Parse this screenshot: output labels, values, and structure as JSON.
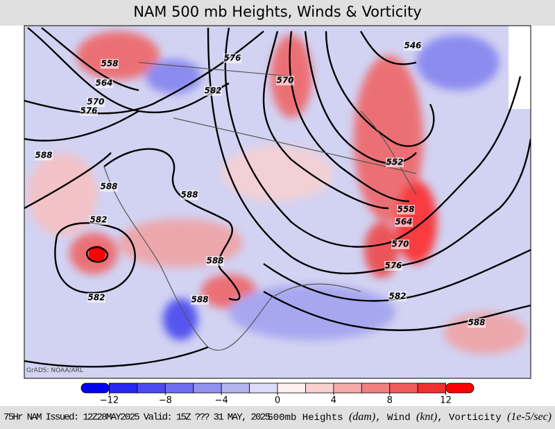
{
  "header": {
    "title": "NAM 500 mb Heights, Winds & Vorticity"
  },
  "map": {
    "watermark": "GrADS: NOAA/ARL",
    "contour_labels": [
      "558",
      "564",
      "570",
      "576",
      "576",
      "570",
      "582",
      "588",
      "588",
      "588",
      "582",
      "582",
      "588",
      "588",
      "546",
      "552",
      "558",
      "564",
      "570",
      "576",
      "582",
      "588"
    ]
  },
  "colorbar": {
    "lim": [
      -14,
      14
    ],
    "colors": [
      "#0000f0",
      "#2828f0",
      "#4b4bf0",
      "#6e6ef0",
      "#9191f0",
      "#b4b4f0",
      "#dcdcf8",
      "#fff0f0",
      "#f8d0d0",
      "#f4aaaa",
      "#f08080",
      "#f05a5a",
      "#f03030",
      "#ff0000"
    ],
    "ticks": [
      {
        "value": -12,
        "label": "−12"
      },
      {
        "value": -8,
        "label": "−8"
      },
      {
        "value": -4,
        "label": "−4"
      },
      0,
      4,
      8,
      12
    ]
  },
  "footer": {
    "left": "75Hr NAM Issued: 12Z28MAY2025 Valid: 15Z ??? 31 MAY, 2025",
    "right": [
      "500mb Heights ",
      "(dam)",
      ", Wind ",
      "(knt)",
      ", Vorticity ",
      "(1e-5/sec)"
    ]
  }
}
